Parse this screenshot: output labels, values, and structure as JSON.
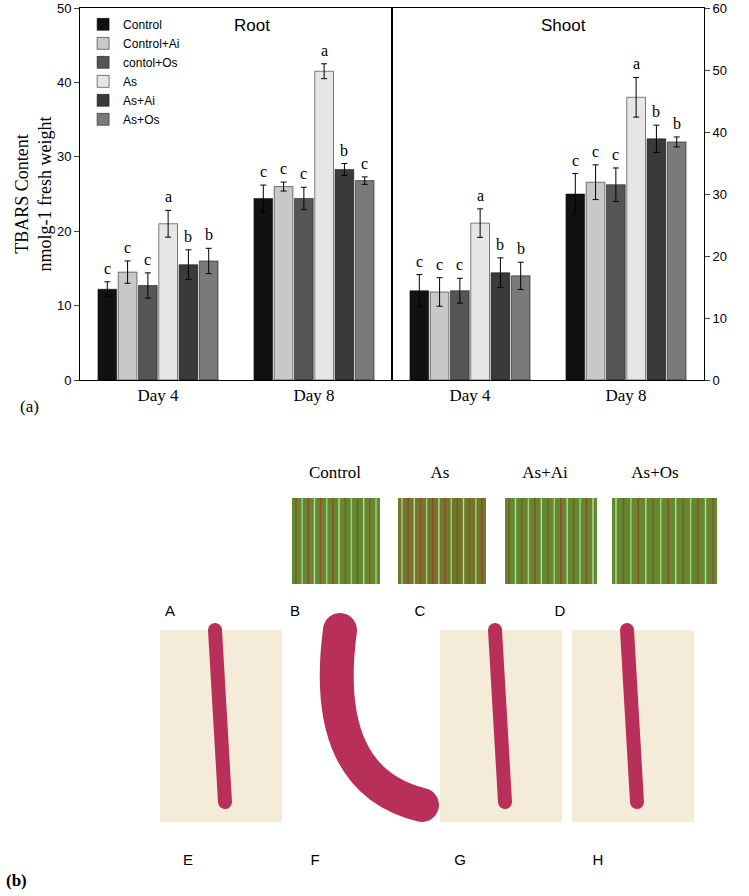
{
  "chart_data": [
    {
      "type": "bar",
      "title": "Root",
      "categories": [
        "Day 4",
        "Day 8"
      ],
      "y_label": [
        "TBARS Content",
        "nmolg-1 fresh weight"
      ],
      "ylim": [
        0,
        50
      ],
      "yticks": [
        0,
        10,
        20,
        30,
        40,
        50
      ],
      "legend": "upper left",
      "series": [
        {
          "name": "Control",
          "color": "#111111",
          "values": [
            12.2,
            24.4
          ],
          "error": [
            1.0,
            1.8
          ],
          "letters": [
            "c",
            "c"
          ]
        },
        {
          "name": "Control+Ai",
          "color": "#c8c8c8",
          "values": [
            14.5,
            26.0
          ],
          "error": [
            1.5,
            0.6
          ],
          "letters": [
            "c",
            "c"
          ]
        },
        {
          "name": "contol+Os",
          "color": "#555555",
          "values": [
            12.7,
            24.4
          ],
          "error": [
            1.7,
            1.5
          ],
          "letters": [
            "c",
            "c"
          ]
        },
        {
          "name": "As",
          "color": "#e6e6e6",
          "values": [
            21.0,
            41.5
          ],
          "error": [
            1.8,
            1.0
          ],
          "letters": [
            "a",
            "a"
          ]
        },
        {
          "name": "As+Ai",
          "color": "#3a3a3a",
          "values": [
            15.5,
            28.3
          ],
          "error": [
            2.0,
            0.8
          ],
          "letters": [
            "b",
            "b"
          ]
        },
        {
          "name": "As+Os",
          "color": "#7a7a7a",
          "values": [
            16.0,
            26.8
          ],
          "error": [
            1.7,
            0.5
          ],
          "letters": [
            "b",
            "c"
          ]
        }
      ]
    },
    {
      "type": "bar",
      "title": "Shoot",
      "categories": [
        "Day 4",
        "Day 8"
      ],
      "ylim": [
        0,
        60
      ],
      "yticks": [
        0,
        10,
        20,
        30,
        40,
        50,
        60
      ],
      "series": [
        {
          "name": "Control",
          "color": "#111111",
          "values": [
            14.4,
            30.0
          ],
          "error": [
            2.6,
            3.3
          ],
          "letters": [
            "c",
            "c"
          ]
        },
        {
          "name": "Control+Ai",
          "color": "#c8c8c8",
          "values": [
            14.2,
            31.9
          ],
          "error": [
            2.3,
            2.8
          ],
          "letters": [
            "c",
            "c"
          ]
        },
        {
          "name": "contol+Os",
          "color": "#555555",
          "values": [
            14.4,
            31.5
          ],
          "error": [
            2.0,
            2.7
          ],
          "letters": [
            "c",
            "c"
          ]
        },
        {
          "name": "As",
          "color": "#e6e6e6",
          "values": [
            25.3,
            45.6
          ],
          "error": [
            2.3,
            3.2
          ],
          "letters": [
            "a",
            "a"
          ]
        },
        {
          "name": "As+Ai",
          "color": "#3a3a3a",
          "values": [
            17.3,
            38.9
          ],
          "error": [
            2.4,
            2.2
          ],
          "letters": [
            "b",
            "b"
          ]
        },
        {
          "name": "As+Os",
          "color": "#7a7a7a",
          "values": [
            16.8,
            38.4
          ],
          "error": [
            2.2,
            0.8
          ],
          "letters": [
            "b",
            "b"
          ]
        }
      ]
    }
  ],
  "panel_a_label": "(a)",
  "panel_b": {
    "label": "(b)",
    "columns": [
      "Control",
      "As",
      "As+Ai",
      "As+Os"
    ],
    "leaf_labels": [
      "A",
      "B",
      "C",
      "D"
    ],
    "root_labels": [
      "E",
      "F",
      "G",
      "H"
    ]
  }
}
